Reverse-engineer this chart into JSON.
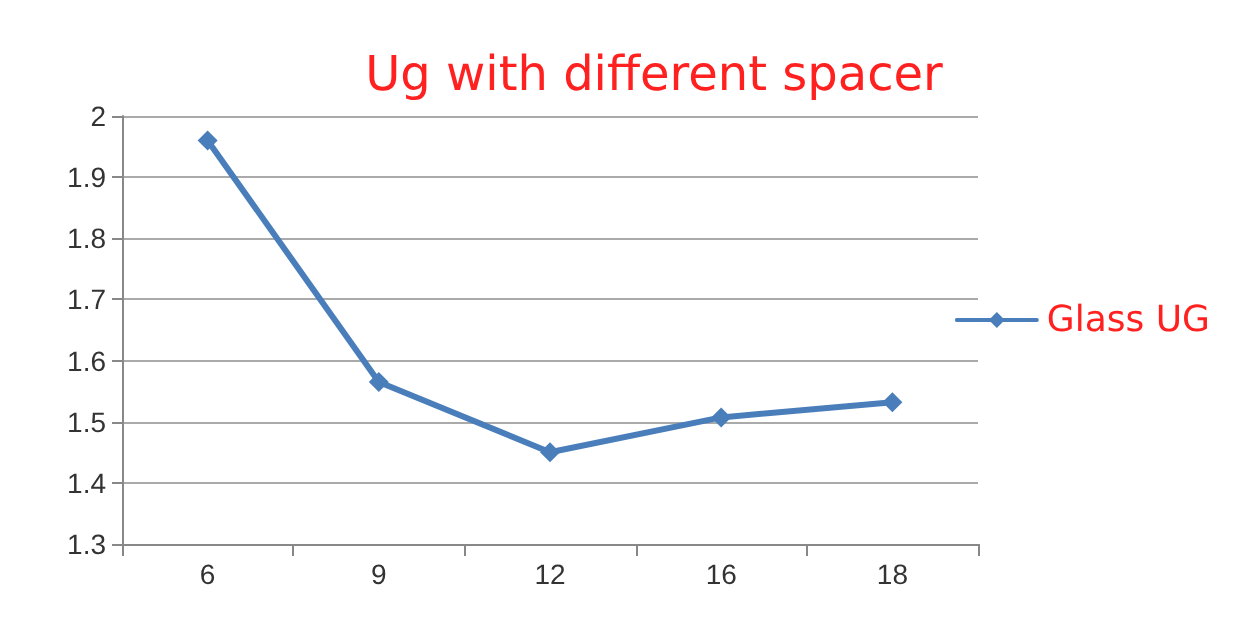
{
  "chart_data": {
    "type": "line",
    "title": "Ug with different spacer",
    "categories": [
      "6",
      "9",
      "12",
      "16",
      "18"
    ],
    "series": [
      {
        "name": "Glass UG",
        "color": "#4a7ebb",
        "values": [
          1.96,
          1.565,
          1.45,
          1.507,
          1.532
        ]
      }
    ],
    "ylim": [
      1.3,
      2
    ],
    "yticks": [
      1.3,
      1.4,
      1.5,
      1.6,
      1.7,
      1.8,
      1.9,
      2
    ],
    "grid": "y",
    "legend": "right",
    "marker": "diamond",
    "line_style": "solid"
  }
}
